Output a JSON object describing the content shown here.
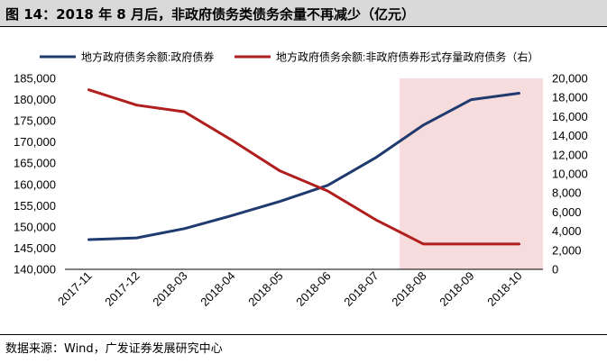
{
  "figure": {
    "title": "图 14：2018 年 8 月后，非政府债务类债务余量不再减少（亿元）",
    "source": "数据来源：Wind，广发证券发展研究中心"
  },
  "colors": {
    "series1": "#1f3a6e",
    "series2": "#b01e1e",
    "highlight": "#f6dcdc",
    "title_bg": "#d9d9d9"
  },
  "chart_data": {
    "type": "line",
    "categories": [
      "2017-11",
      "2017-12",
      "2018-03",
      "2018-04",
      "2018-05",
      "2018-06",
      "2018-07",
      "2018-08",
      "2018-09",
      "2018-10"
    ],
    "y_left": {
      "min": 140000,
      "max": 185000,
      "step": 5000,
      "ticks": [
        "140,000",
        "145,000",
        "150,000",
        "155,000",
        "160,000",
        "165,000",
        "170,000",
        "175,000",
        "180,000",
        "185,000"
      ]
    },
    "y_right": {
      "min": 0,
      "max": 20000,
      "step": 2000,
      "ticks": [
        "0",
        "2,000",
        "4,000",
        "6,000",
        "8,000",
        "10,000",
        "12,000",
        "14,000",
        "16,000",
        "18,000",
        "20,000"
      ]
    },
    "highlight_range": [
      "2018-08",
      "2018-10"
    ],
    "legend_position": "top",
    "grid": false,
    "series": [
      {
        "name": "地方政府债务余额:政府债券",
        "axis": "left",
        "values": [
          147000,
          147400,
          149600,
          152700,
          156000,
          159800,
          166300,
          174000,
          180000,
          181500
        ]
      },
      {
        "name": "地方政府债务余额:非政府债券形式存量政府债务（右）",
        "axis": "right",
        "values": [
          18800,
          17200,
          16500,
          13500,
          10300,
          8200,
          5200,
          2650,
          2650,
          2650
        ]
      }
    ]
  }
}
